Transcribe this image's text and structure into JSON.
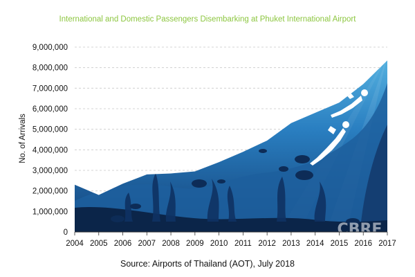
{
  "title": "International and Domestic Passengers Disembarking at Phuket International Airport",
  "source": "Source: Airports of Thailand (AOT), July 2018",
  "watermark": "CBRE",
  "colors": {
    "title": "#8cc63f",
    "water_top": "#5fbde7",
    "water_mid": "#2a7fc1",
    "water_deep": "#123f76",
    "seabed": "#0b2549",
    "grid": "#c8c8c8"
  },
  "chart_data": {
    "type": "area",
    "title": "International and Domestic Passengers Disembarking at Phuket International Airport",
    "xlabel": "",
    "ylabel": "No. of Arrivals",
    "x": [
      2004,
      2005,
      2006,
      2007,
      2008,
      2009,
      2010,
      2011,
      2012,
      2013,
      2014,
      2015,
      2016,
      2017
    ],
    "values": [
      2300000,
      1800000,
      2350000,
      2800000,
      2850000,
      2950000,
      3400000,
      3900000,
      4450000,
      5300000,
      5800000,
      6300000,
      7200000,
      8350000
    ],
    "ylim": [
      0,
      9000000
    ],
    "yticks": [
      "0",
      "1,000,000",
      "2,000,000",
      "3,000,000",
      "4,000,000",
      "5,000,000",
      "6,000,000",
      "7,000,000",
      "8,000,000",
      "9,000,000"
    ],
    "xticks": [
      "2004",
      "2005",
      "2006",
      "2007",
      "2008",
      "2009",
      "2010",
      "2011",
      "2012",
      "2013",
      "2014",
      "2015",
      "2016",
      "2017"
    ],
    "grid": "horizontal dashed",
    "legend": "none"
  }
}
